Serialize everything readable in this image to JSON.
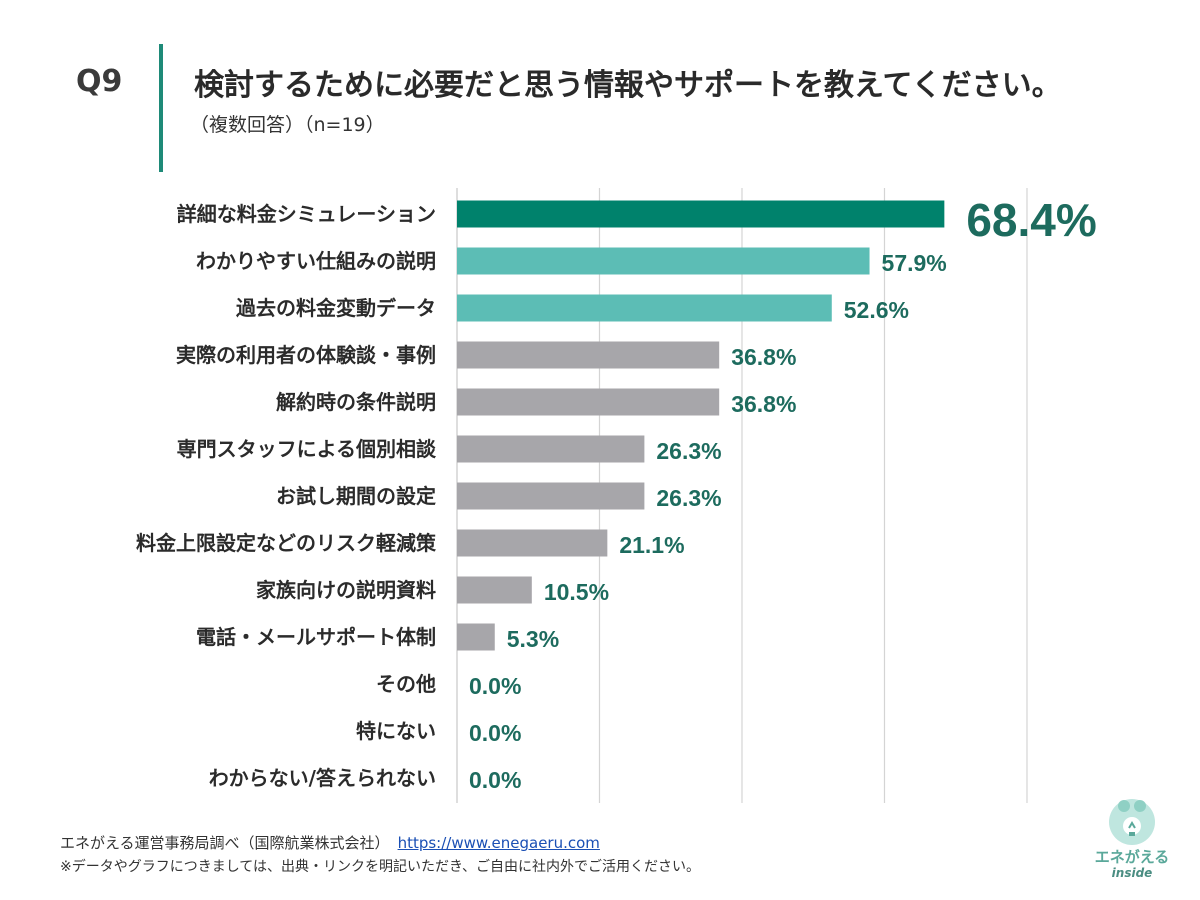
{
  "header": {
    "question_number": "Q9",
    "title": "検討するために必要だと思う情報やサポートを教えてください。",
    "subtitle": "（複数回答）（n=19）"
  },
  "colors": {
    "top": "#00826c",
    "highlight": "#5cbdb5",
    "other": "#a7a6aa",
    "label": "#1d6b5e",
    "grid": "#d4d4d4"
  },
  "chart_data": {
    "type": "bar",
    "orientation": "horizontal",
    "categories": [
      "詳細な料金シミュレーション",
      "わかりやすい仕組みの説明",
      "過去の料金変動データ",
      "実際の利用者の体験談・事例",
      "解約時の条件説明",
      "専門スタッフによる個別相談",
      "お試し期間の設定",
      "料金上限設定などのリスク軽減策",
      "家族向けの説明資料",
      "電話・メールサポート体制",
      "その他",
      "特にない",
      "わからない/答えられない"
    ],
    "values": [
      68.4,
      57.9,
      52.6,
      36.8,
      36.8,
      26.3,
      26.3,
      21.1,
      10.5,
      5.3,
      0.0,
      0.0,
      0.0
    ],
    "value_labels": [
      "68.4%",
      "57.9%",
      "52.6%",
      "36.8%",
      "36.8%",
      "26.3%",
      "26.3%",
      "21.1%",
      "10.5%",
      "5.3%",
      "0.0%",
      "0.0%",
      "0.0%"
    ],
    "color_groups": [
      "top",
      "highlight",
      "highlight",
      "other",
      "other",
      "other",
      "other",
      "other",
      "other",
      "other",
      "other",
      "other",
      "other"
    ],
    "xlim": [
      0,
      80
    ],
    "gridlines": [
      20,
      40,
      60,
      80
    ],
    "unit": "%"
  },
  "footer": {
    "source": "エネがえる運営事務局調べ（国際航業株式会社）",
    "url": "https://www.enegaeru.com",
    "note": "※データやグラフにつきましては、出典・リンクを明記いただき、ご自由に社内外でご活用ください。"
  },
  "logo": {
    "name": "エネがえる",
    "sub": "inside"
  }
}
